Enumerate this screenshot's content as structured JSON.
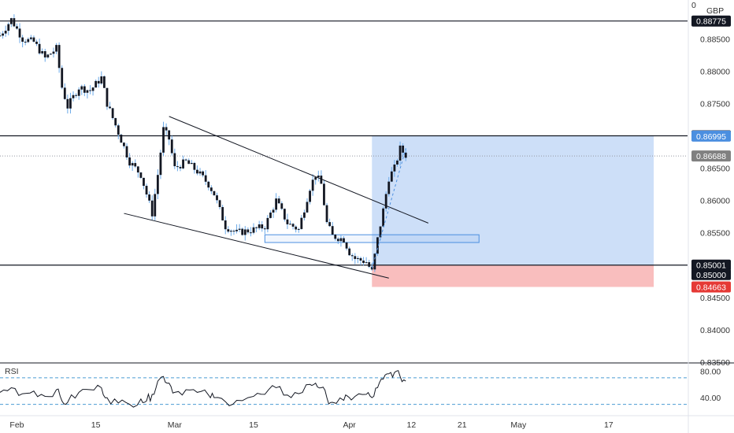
{
  "instrument": {
    "currency": "GBP",
    "menu_glyph": "0"
  },
  "colors": {
    "candle": "#131722",
    "wick": "#6aa9e8",
    "level_line": "#131722",
    "target_zone": "#bcd4f5",
    "stop_zone": "#f7a8a8",
    "rsi_line": "#131722",
    "rsi_band": "#4b9cd3",
    "tag_black": "#131722",
    "tag_blue": "#4b8fe0",
    "tag_gray": "#808080",
    "tag_red": "#e53935"
  },
  "chart_data": {
    "type": "candlestick",
    "y_axis": {
      "range": [
        0.835,
        0.891
      ],
      "ticks": [
        "0.88500",
        "0.88000",
        "0.87500",
        "0.86500",
        "0.86000",
        "0.85500",
        "0.84500",
        "0.84000",
        "0.83500"
      ]
    },
    "x_axis": {
      "range": [
        "2021-01-29",
        "2021-05-31"
      ],
      "ticks": [
        {
          "label": "Feb",
          "date": "2021-02-01"
        },
        {
          "label": "15",
          "date": "2021-02-15"
        },
        {
          "label": "Mar",
          "date": "2021-03-01"
        },
        {
          "label": "15",
          "date": "2021-03-15"
        },
        {
          "label": "Apr",
          "date": "2021-04-01"
        },
        {
          "label": "12",
          "date": "2021-04-12"
        },
        {
          "label": "21",
          "date": "2021-04-21"
        },
        {
          "label": "May",
          "date": "2021-05-01"
        },
        {
          "label": "17",
          "date": "2021-05-17"
        }
      ]
    },
    "price_path": [
      [
        "2021-01-29",
        0.8855
      ],
      [
        "2021-01-31",
        0.888
      ],
      [
        "2021-02-02",
        0.885
      ],
      [
        "2021-02-04",
        0.8845
      ],
      [
        "2021-02-06",
        0.882
      ],
      [
        "2021-02-08",
        0.8835
      ],
      [
        "2021-02-09",
        0.8775
      ],
      [
        "2021-02-10",
        0.8745
      ],
      [
        "2021-02-12",
        0.8775
      ],
      [
        "2021-02-14",
        0.877
      ],
      [
        "2021-02-16",
        0.879
      ],
      [
        "2021-02-17",
        0.875
      ],
      [
        "2021-02-19",
        0.8705
      ],
      [
        "2021-02-21",
        0.866
      ],
      [
        "2021-02-23",
        0.864
      ],
      [
        "2021-02-24",
        0.861
      ],
      [
        "2021-02-25",
        0.858
      ],
      [
        "2021-02-26",
        0.864
      ],
      [
        "2021-02-27",
        0.871
      ],
      [
        "2021-02-28",
        0.8695
      ],
      [
        "2021-03-01",
        0.865
      ],
      [
        "2021-03-03",
        0.866
      ],
      [
        "2021-03-05",
        0.8645
      ],
      [
        "2021-03-07",
        0.8625
      ],
      [
        "2021-03-08",
        0.861
      ],
      [
        "2021-03-10",
        0.856
      ],
      [
        "2021-03-12",
        0.855
      ],
      [
        "2021-03-15",
        0.8555
      ],
      [
        "2021-03-17",
        0.856
      ],
      [
        "2021-03-19",
        0.86
      ],
      [
        "2021-03-21",
        0.8565
      ],
      [
        "2021-03-23",
        0.8555
      ],
      [
        "2021-03-25",
        0.862
      ],
      [
        "2021-03-26",
        0.864
      ],
      [
        "2021-03-27",
        0.8625
      ],
      [
        "2021-03-28",
        0.8565
      ],
      [
        "2021-03-29",
        0.8545
      ],
      [
        "2021-03-31",
        0.854
      ],
      [
        "2021-04-01",
        0.852
      ],
      [
        "2021-04-02",
        0.851
      ],
      [
        "2021-04-04",
        0.8505
      ],
      [
        "2021-04-05",
        0.849
      ],
      [
        "2021-04-06",
        0.854
      ],
      [
        "2021-04-07",
        0.8585
      ],
      [
        "2021-04-08",
        0.8635
      ],
      [
        "2021-04-09",
        0.865
      ],
      [
        "2021-04-10",
        0.868
      ],
      [
        "2021-04-11",
        0.867
      ]
    ],
    "rsi": {
      "label": "RSI",
      "ticks": [
        80.0,
        40.0
      ],
      "tick_labels": [
        "80.00",
        "40.00"
      ],
      "band_levels": [
        70,
        30
      ],
      "range": [
        20,
        90
      ],
      "values": [
        [
          "2021-01-29",
          48
        ],
        [
          "2021-01-31",
          55
        ],
        [
          "2021-02-02",
          46
        ],
        [
          "2021-02-04",
          50
        ],
        [
          "2021-02-06",
          42
        ],
        [
          "2021-02-08",
          52
        ],
        [
          "2021-02-09",
          35
        ],
        [
          "2021-02-10",
          33
        ],
        [
          "2021-02-12",
          48
        ],
        [
          "2021-02-14",
          52
        ],
        [
          "2021-02-16",
          55
        ],
        [
          "2021-02-17",
          40
        ],
        [
          "2021-02-19",
          32
        ],
        [
          "2021-02-21",
          30
        ],
        [
          "2021-02-23",
          38
        ],
        [
          "2021-02-24",
          35
        ],
        [
          "2021-02-25",
          45
        ],
        [
          "2021-02-26",
          65
        ],
        [
          "2021-02-27",
          72
        ],
        [
          "2021-02-28",
          62
        ],
        [
          "2021-03-01",
          48
        ],
        [
          "2021-03-03",
          52
        ],
        [
          "2021-03-05",
          48
        ],
        [
          "2021-03-07",
          44
        ],
        [
          "2021-03-08",
          40
        ],
        [
          "2021-03-10",
          34
        ],
        [
          "2021-03-12",
          36
        ],
        [
          "2021-03-15",
          42
        ],
        [
          "2021-03-17",
          45
        ],
        [
          "2021-03-19",
          55
        ],
        [
          "2021-03-21",
          44
        ],
        [
          "2021-03-23",
          46
        ],
        [
          "2021-03-25",
          60
        ],
        [
          "2021-03-26",
          62
        ],
        [
          "2021-03-27",
          55
        ],
        [
          "2021-03-28",
          40
        ],
        [
          "2021-03-29",
          33
        ],
        [
          "2021-03-31",
          36
        ],
        [
          "2021-04-01",
          40
        ],
        [
          "2021-04-02",
          42
        ],
        [
          "2021-04-04",
          45
        ],
        [
          "2021-04-05",
          40
        ],
        [
          "2021-04-06",
          55
        ],
        [
          "2021-04-07",
          68
        ],
        [
          "2021-04-08",
          76
        ],
        [
          "2021-04-09",
          78
        ],
        [
          "2021-04-10",
          72
        ],
        [
          "2021-04-11",
          65
        ]
      ]
    },
    "levels": [
      {
        "name": "upper-level",
        "price": 0.88775,
        "label": "0.88775",
        "style": "solid",
        "tag": "black"
      },
      {
        "name": "resistance",
        "price": 0.87,
        "label": "0.87000",
        "style": "solid",
        "tag": "black"
      },
      {
        "name": "target",
        "price": 0.86995,
        "label": "0.86995",
        "style": "none",
        "tag": "blue"
      },
      {
        "name": "last-price",
        "price": 0.86688,
        "label": "0.86688",
        "style": "dotted",
        "tag": "gray"
      },
      {
        "name": "entry",
        "price": 0.85001,
        "label": "0.85001",
        "style": "none",
        "tag": "black"
      },
      {
        "name": "support",
        "price": 0.85,
        "label": "0.85000",
        "style": "solid",
        "tag": "black"
      },
      {
        "name": "stop",
        "price": 0.84663,
        "label": "0.84663",
        "style": "none",
        "tag": "red"
      }
    ],
    "trendlines": [
      {
        "name": "channel-top",
        "from": [
          "2021-02-28",
          0.873
        ],
        "to": [
          "2021-04-15",
          0.8565
        ]
      },
      {
        "name": "channel-bottom",
        "from": [
          "2021-02-20",
          0.858
        ],
        "to": [
          "2021-04-08",
          0.848
        ]
      }
    ],
    "zones": [
      {
        "name": "target-zone",
        "from_date": "2021-04-05",
        "to_date": "2021-05-25",
        "top": 0.86995,
        "bottom": 0.85001
      },
      {
        "name": "stop-zone",
        "from_date": "2021-04-05",
        "to_date": "2021-05-25",
        "top": 0.85001,
        "bottom": 0.84663
      },
      {
        "name": "supply-box",
        "from_date": "2021-03-17",
        "to_date": "2021-04-24",
        "top": 0.8547,
        "bottom": 0.8535
      }
    ]
  }
}
